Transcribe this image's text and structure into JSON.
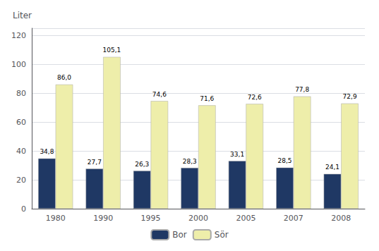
{
  "chart_data": {
    "type": "bar",
    "ylabel": "Liter",
    "categories": [
      "1980",
      "1990",
      "1995",
      "2000",
      "2005",
      "2007",
      "2008"
    ],
    "series": [
      {
        "name": "Bor",
        "color": "#1f3864",
        "values": [
          34.8,
          27.7,
          26.3,
          28.3,
          33.1,
          28.5,
          24.1
        ],
        "value_labels": [
          "34,8",
          "27,7",
          "26,3",
          "28,3",
          "33,1",
          "28,5",
          "24,1"
        ]
      },
      {
        "name": "Sör",
        "color": "#eeeeaa",
        "values": [
          86.0,
          105.1,
          74.6,
          71.6,
          72.6,
          77.8,
          72.9
        ],
        "value_labels": [
          "86,0",
          "105,1",
          "74,6",
          "71,6",
          "72,6",
          "77,8",
          "72,9"
        ]
      }
    ],
    "ylim": [
      0,
      125
    ],
    "yticks": [
      0,
      20,
      40,
      60,
      80,
      100,
      120
    ],
    "grid": true,
    "legend": "bottom",
    "data_labels": true
  }
}
